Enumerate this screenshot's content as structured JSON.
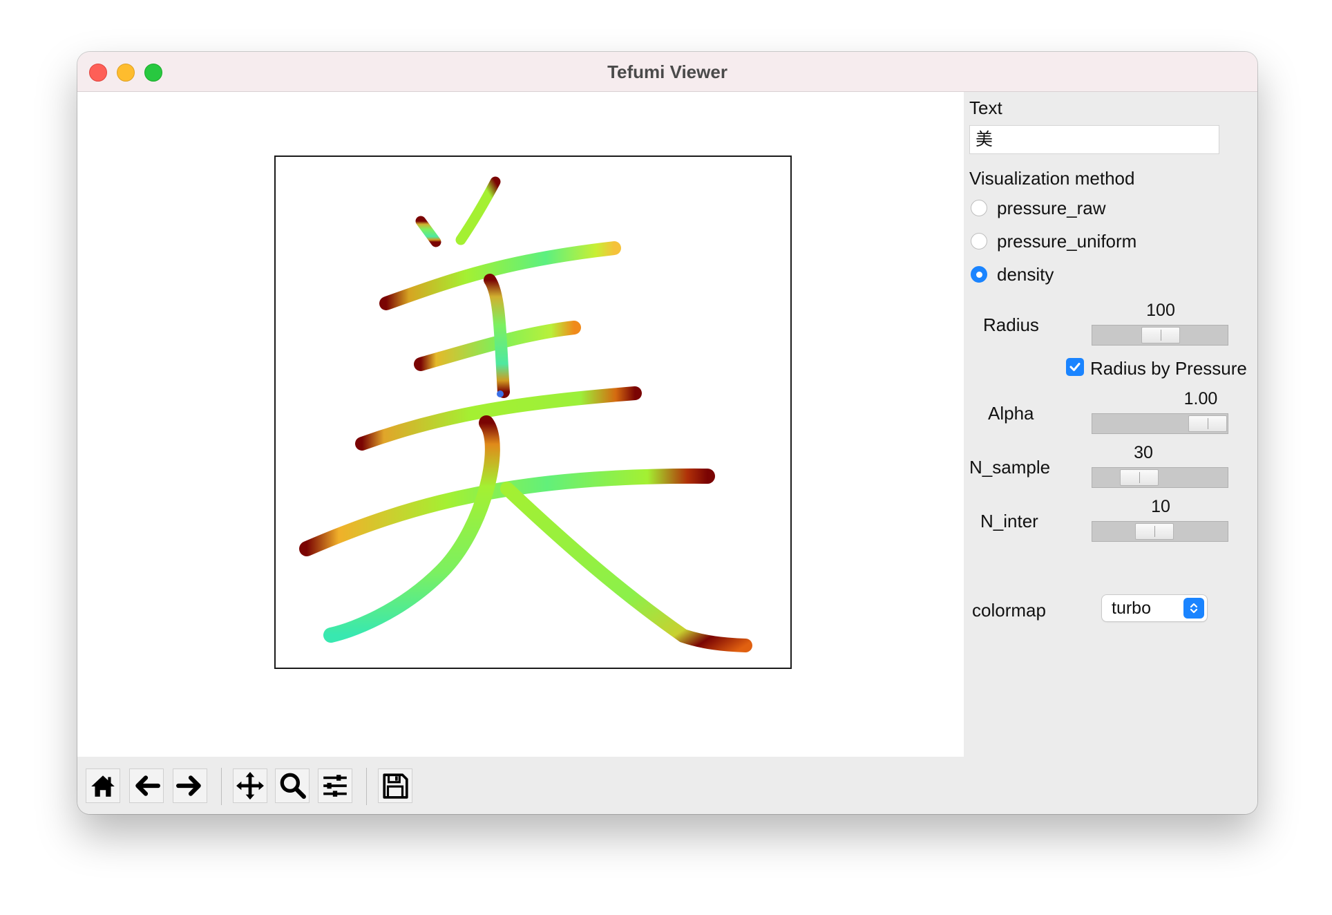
{
  "window": {
    "title": "Tefumi Viewer"
  },
  "side": {
    "text_label": "Text",
    "text_value": "美",
    "viz_label": "Visualization method",
    "methods": [
      {
        "label": "pressure_raw",
        "selected": false
      },
      {
        "label": "pressure_uniform",
        "selected": false
      },
      {
        "label": "density",
        "selected": true
      }
    ],
    "radius": {
      "label": "Radius",
      "value": "100",
      "level": 0.5
    },
    "radius_by_pressure": {
      "label": "Radius by Pressure",
      "checked": true
    },
    "alpha": {
      "label": "Alpha",
      "value": "1.00",
      "level": 1.0
    },
    "n_sample": {
      "label": "N_sample",
      "value": "30",
      "level": 0.2
    },
    "n_inter": {
      "label": "N_inter",
      "value": "10",
      "level": 0.4
    },
    "colormap": {
      "label": "colormap",
      "value": "turbo"
    }
  },
  "toolbar": {
    "buttons": [
      "home-icon",
      "back-arrow-icon",
      "forward-arrow-icon",
      "pan-icon",
      "zoom-icon",
      "configure-subplots-icon",
      "save-icon"
    ]
  },
  "colors": {
    "accent": "#1a84ff",
    "stroke_low": "#32e6a0",
    "stroke_mid": "#a4f032",
    "stroke_high": "#7a0403"
  }
}
